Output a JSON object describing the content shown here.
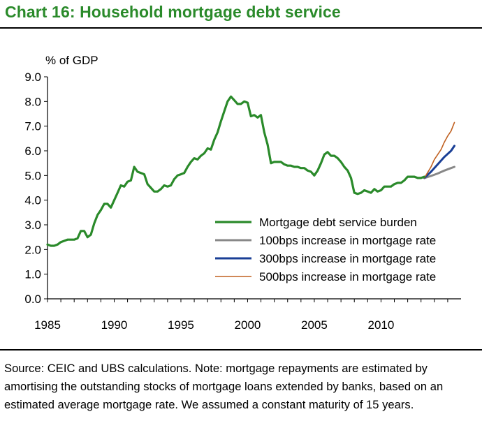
{
  "title": "Chart 16: Household mortgage debt service",
  "source_note": "Source: CEIC and UBS calculations. Note: mortgage repayments are estimated by amortising the outstanding stocks of mortgage loans extended by banks, based on an estimated average mortgage rate. We assumed a constant maturity of 15 years.",
  "colors": {
    "title": "#2a8a2a",
    "burden": "#2a8a2a",
    "inc100": "#888888",
    "inc300": "#1a3f96",
    "inc500": "#c06020"
  },
  "chart_data": {
    "type": "line",
    "ylabel": "% of GDP",
    "xlabel": "",
    "xlim": [
      1985,
      2016
    ],
    "ylim": [
      0,
      9
    ],
    "yticks": [
      "0.0",
      "1.0",
      "2.0",
      "3.0",
      "4.0",
      "5.0",
      "6.0",
      "7.0",
      "8.0",
      "9.0"
    ],
    "xticks": [
      "1985",
      "1990",
      "1995",
      "2000",
      "2005",
      "2010"
    ],
    "grid": false,
    "legend_position": "bottom-right",
    "series": [
      {
        "name": "Mortgage debt service burden",
        "color": "#2a8a2a",
        "points": [
          [
            1985.0,
            2.2
          ],
          [
            1985.25,
            2.15
          ],
          [
            1985.5,
            2.15
          ],
          [
            1985.75,
            2.2
          ],
          [
            1986.0,
            2.3
          ],
          [
            1986.25,
            2.35
          ],
          [
            1986.5,
            2.4
          ],
          [
            1986.75,
            2.4
          ],
          [
            1987.0,
            2.4
          ],
          [
            1987.25,
            2.45
          ],
          [
            1987.5,
            2.75
          ],
          [
            1987.75,
            2.75
          ],
          [
            1988.0,
            2.5
          ],
          [
            1988.25,
            2.6
          ],
          [
            1988.5,
            3.05
          ],
          [
            1988.75,
            3.4
          ],
          [
            1989.0,
            3.6
          ],
          [
            1989.25,
            3.85
          ],
          [
            1989.5,
            3.85
          ],
          [
            1989.75,
            3.7
          ],
          [
            1990.0,
            4.0
          ],
          [
            1990.25,
            4.3
          ],
          [
            1990.5,
            4.6
          ],
          [
            1990.75,
            4.55
          ],
          [
            1991.0,
            4.75
          ],
          [
            1991.25,
            4.8
          ],
          [
            1991.5,
            5.35
          ],
          [
            1991.75,
            5.15
          ],
          [
            1992.0,
            5.1
          ],
          [
            1992.25,
            5.05
          ],
          [
            1992.5,
            4.65
          ],
          [
            1992.75,
            4.5
          ],
          [
            1993.0,
            4.35
          ],
          [
            1993.25,
            4.35
          ],
          [
            1993.5,
            4.45
          ],
          [
            1993.75,
            4.6
          ],
          [
            1994.0,
            4.55
          ],
          [
            1994.25,
            4.6
          ],
          [
            1994.5,
            4.85
          ],
          [
            1994.75,
            5.0
          ],
          [
            1995.0,
            5.05
          ],
          [
            1995.25,
            5.1
          ],
          [
            1995.5,
            5.35
          ],
          [
            1995.75,
            5.55
          ],
          [
            1996.0,
            5.7
          ],
          [
            1996.25,
            5.65
          ],
          [
            1996.5,
            5.8
          ],
          [
            1996.75,
            5.9
          ],
          [
            1997.0,
            6.1
          ],
          [
            1997.25,
            6.05
          ],
          [
            1997.5,
            6.45
          ],
          [
            1997.75,
            6.75
          ],
          [
            1998.0,
            7.2
          ],
          [
            1998.25,
            7.6
          ],
          [
            1998.5,
            8.0
          ],
          [
            1998.75,
            8.2
          ],
          [
            1999.0,
            8.05
          ],
          [
            1999.25,
            7.9
          ],
          [
            1999.5,
            7.9
          ],
          [
            1999.75,
            8.0
          ],
          [
            2000.0,
            7.95
          ],
          [
            2000.25,
            7.4
          ],
          [
            2000.5,
            7.45
          ],
          [
            2000.75,
            7.35
          ],
          [
            2001.0,
            7.45
          ],
          [
            2001.25,
            6.75
          ],
          [
            2001.5,
            6.25
          ],
          [
            2001.75,
            5.5
          ],
          [
            2002.0,
            5.55
          ],
          [
            2002.25,
            5.55
          ],
          [
            2002.5,
            5.55
          ],
          [
            2002.75,
            5.45
          ],
          [
            2003.0,
            5.4
          ],
          [
            2003.25,
            5.4
          ],
          [
            2003.5,
            5.35
          ],
          [
            2003.75,
            5.35
          ],
          [
            2004.0,
            5.3
          ],
          [
            2004.25,
            5.3
          ],
          [
            2004.5,
            5.2
          ],
          [
            2004.75,
            5.15
          ],
          [
            2005.0,
            5.0
          ],
          [
            2005.25,
            5.2
          ],
          [
            2005.5,
            5.5
          ],
          [
            2005.75,
            5.85
          ],
          [
            2006.0,
            5.95
          ],
          [
            2006.25,
            5.8
          ],
          [
            2006.5,
            5.8
          ],
          [
            2006.75,
            5.7
          ],
          [
            2007.0,
            5.55
          ],
          [
            2007.25,
            5.35
          ],
          [
            2007.5,
            5.2
          ],
          [
            2007.75,
            4.9
          ],
          [
            2008.0,
            4.3
          ],
          [
            2008.25,
            4.25
          ],
          [
            2008.5,
            4.3
          ],
          [
            2008.75,
            4.4
          ],
          [
            2009.0,
            4.35
          ],
          [
            2009.25,
            4.3
          ],
          [
            2009.5,
            4.45
          ],
          [
            2009.75,
            4.35
          ],
          [
            2010.0,
            4.4
          ],
          [
            2010.25,
            4.55
          ],
          [
            2010.5,
            4.55
          ],
          [
            2010.75,
            4.55
          ],
          [
            2011.0,
            4.65
          ],
          [
            2011.25,
            4.7
          ],
          [
            2011.5,
            4.7
          ],
          [
            2011.75,
            4.8
          ],
          [
            2012.0,
            4.95
          ],
          [
            2012.25,
            4.95
          ],
          [
            2012.5,
            4.95
          ],
          [
            2012.75,
            4.9
          ],
          [
            2013.0,
            4.9
          ],
          [
            2013.25,
            4.95
          ]
        ]
      },
      {
        "name": "100bps increase in mortgage rate",
        "color": "#888888",
        "points": [
          [
            2013.25,
            4.9
          ],
          [
            2013.75,
            4.98
          ],
          [
            2014.25,
            5.08
          ],
          [
            2014.75,
            5.2
          ],
          [
            2015.25,
            5.3
          ],
          [
            2015.5,
            5.35
          ]
        ]
      },
      {
        "name": "300bps increase in mortgage rate",
        "color": "#1a3f96",
        "points": [
          [
            2013.25,
            4.9
          ],
          [
            2013.75,
            5.15
          ],
          [
            2014.25,
            5.45
          ],
          [
            2014.75,
            5.75
          ],
          [
            2015.25,
            6.0
          ],
          [
            2015.5,
            6.2
          ]
        ]
      },
      {
        "name": "500bps increase in mortgage rate",
        "color": "#c06020",
        "points": [
          [
            2013.25,
            4.9
          ],
          [
            2013.75,
            5.35
          ],
          [
            2014.0,
            5.65
          ],
          [
            2014.25,
            5.85
          ],
          [
            2014.5,
            6.05
          ],
          [
            2014.75,
            6.35
          ],
          [
            2015.0,
            6.6
          ],
          [
            2015.25,
            6.8
          ],
          [
            2015.5,
            7.15
          ]
        ]
      }
    ]
  }
}
